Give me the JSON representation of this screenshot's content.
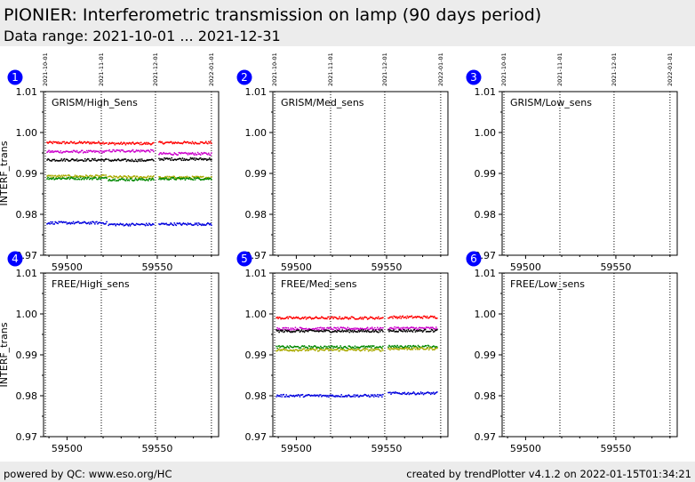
{
  "header": {
    "title": "PIONIER: Interferometric transmission on lamp (90 days period)",
    "subtitle": "Data range: 2021-10-01 ... 2021-12-31"
  },
  "footer": {
    "left": "powered by QC: www.eso.org/HC",
    "right": "created by trendPlotter v4.1.2 on 2022-01-15T01:34:21"
  },
  "colors": {
    "header_bg": "#ececec",
    "panel_badge": "#0000ff",
    "series": {
      "red": "#ff0000",
      "magenta": "#cc00cc",
      "black": "#000000",
      "green": "#008800",
      "olive": "#aaaa00",
      "blue": "#0000dd"
    }
  },
  "chart_data": [
    {
      "panel_number": "1",
      "label": "GRISM/High_Sens",
      "type": "scatter",
      "ylabel": "INTERF_trans",
      "ylim": [
        0.97,
        1.01
      ],
      "yticks": [
        "0.97",
        "0.98",
        "0.99",
        "1.00",
        "1.01"
      ],
      "xlim": [
        59487,
        59584
      ],
      "xticks": [
        "59500",
        "59550"
      ],
      "xtick_values": [
        59500,
        59550
      ],
      "top_dates": [
        "2021-10-01",
        "2021-11-01",
        "2021-12-01",
        "2022-01-01"
      ],
      "top_date_mjd": [
        59488,
        59519,
        59549,
        59580
      ],
      "series": [
        {
          "color": "red",
          "segments": [
            {
              "from": 59489,
              "to": 59522,
              "mean": 0.9975
            },
            {
              "from": 59523,
              "to": 59548,
              "mean": 0.9973
            },
            {
              "from": 59551,
              "to": 59580,
              "mean": 0.9975
            }
          ]
        },
        {
          "color": "magenta",
          "segments": [
            {
              "from": 59489,
              "to": 59522,
              "mean": 0.9953
            },
            {
              "from": 59523,
              "to": 59548,
              "mean": 0.9955
            },
            {
              "from": 59551,
              "to": 59580,
              "mean": 0.9948
            }
          ]
        },
        {
          "color": "black",
          "segments": [
            {
              "from": 59489,
              "to": 59522,
              "mean": 0.9933
            },
            {
              "from": 59523,
              "to": 59548,
              "mean": 0.9932
            },
            {
              "from": 59551,
              "to": 59580,
              "mean": 0.9935
            }
          ]
        },
        {
          "color": "olive",
          "segments": [
            {
              "from": 59489,
              "to": 59522,
              "mean": 0.9893
            },
            {
              "from": 59523,
              "to": 59548,
              "mean": 0.9891
            },
            {
              "from": 59551,
              "to": 59580,
              "mean": 0.989
            }
          ]
        },
        {
          "color": "green",
          "segments": [
            {
              "from": 59489,
              "to": 59522,
              "mean": 0.9888
            },
            {
              "from": 59523,
              "to": 59548,
              "mean": 0.9885
            },
            {
              "from": 59551,
              "to": 59580,
              "mean": 0.9887
            }
          ]
        },
        {
          "color": "blue",
          "segments": [
            {
              "from": 59489,
              "to": 59522,
              "mean": 0.9779
            },
            {
              "from": 59523,
              "to": 59548,
              "mean": 0.9775
            },
            {
              "from": 59551,
              "to": 59580,
              "mean": 0.9776
            }
          ]
        }
      ]
    },
    {
      "panel_number": "2",
      "label": "GRISM/Med_sens",
      "type": "scatter",
      "ylabel": "",
      "ylim": [
        0.97,
        1.01
      ],
      "yticks": [
        "0.97",
        "0.98",
        "0.99",
        "1.00",
        "1.01"
      ],
      "xlim": [
        59487,
        59584
      ],
      "xticks": [
        "59500",
        "59550"
      ],
      "xtick_values": [
        59500,
        59550
      ],
      "top_dates": [
        "2021-10-01",
        "2021-11-01",
        "2021-12-01",
        "2022-01-01"
      ],
      "top_date_mjd": [
        59488,
        59519,
        59549,
        59580
      ],
      "series": []
    },
    {
      "panel_number": "3",
      "label": "GRISM/Low_sens",
      "type": "scatter",
      "ylabel": "",
      "ylim": [
        0.97,
        1.01
      ],
      "yticks": [
        "0.97",
        "0.98",
        "0.99",
        "1.00",
        "1.01"
      ],
      "xlim": [
        59487,
        59584
      ],
      "xticks": [
        "59500",
        "59550"
      ],
      "xtick_values": [
        59500,
        59550
      ],
      "top_dates": [
        "2021-10-01",
        "2021-11-01",
        "2021-12-01",
        "2022-01-01"
      ],
      "top_date_mjd": [
        59488,
        59519,
        59549,
        59580
      ],
      "series": []
    },
    {
      "panel_number": "4",
      "label": "FREE/High_sens",
      "type": "scatter",
      "ylabel": "INTERF_trans",
      "ylim": [
        0.97,
        1.01
      ],
      "yticks": [
        "0.97",
        "0.98",
        "0.99",
        "1.00",
        "1.01"
      ],
      "xlim": [
        59487,
        59584
      ],
      "xticks": [
        "59500",
        "59550"
      ],
      "xtick_values": [
        59500,
        59550
      ],
      "top_dates": [],
      "top_date_mjd": [
        59488,
        59519,
        59549,
        59580
      ],
      "series": []
    },
    {
      "panel_number": "5",
      "label": "FREE/Med_sens",
      "type": "scatter",
      "ylabel": "",
      "ylim": [
        0.97,
        1.01
      ],
      "yticks": [
        "0.97",
        "0.98",
        "0.99",
        "1.00",
        "1.01"
      ],
      "xlim": [
        59487,
        59584
      ],
      "xticks": [
        "59500",
        "59550"
      ],
      "xtick_values": [
        59500,
        59550
      ],
      "top_dates": [],
      "top_date_mjd": [
        59488,
        59519,
        59549,
        59580
      ],
      "series": [
        {
          "color": "red",
          "segments": [
            {
              "from": 59489,
              "to": 59548,
              "mean": 0.999
            },
            {
              "from": 59551,
              "to": 59578,
              "mean": 0.9992
            }
          ]
        },
        {
          "color": "magenta",
          "segments": [
            {
              "from": 59489,
              "to": 59548,
              "mean": 0.9964
            },
            {
              "from": 59551,
              "to": 59578,
              "mean": 0.9965
            }
          ]
        },
        {
          "color": "black",
          "segments": [
            {
              "from": 59489,
              "to": 59548,
              "mean": 0.9958
            },
            {
              "from": 59551,
              "to": 59578,
              "mean": 0.9959
            }
          ]
        },
        {
          "color": "green",
          "segments": [
            {
              "from": 59489,
              "to": 59548,
              "mean": 0.9919
            },
            {
              "from": 59551,
              "to": 59578,
              "mean": 0.992
            }
          ]
        },
        {
          "color": "olive",
          "segments": [
            {
              "from": 59489,
              "to": 59548,
              "mean": 0.9912
            },
            {
              "from": 59551,
              "to": 59578,
              "mean": 0.9915
            }
          ]
        },
        {
          "color": "blue",
          "segments": [
            {
              "from": 59489,
              "to": 59548,
              "mean": 0.98
            },
            {
              "from": 59551,
              "to": 59578,
              "mean": 0.9806
            }
          ]
        }
      ]
    },
    {
      "panel_number": "6",
      "label": "FREE/Low_sens",
      "type": "scatter",
      "ylabel": "",
      "ylim": [
        0.97,
        1.01
      ],
      "yticks": [
        "0.97",
        "0.98",
        "0.99",
        "1.00",
        "1.01"
      ],
      "xlim": [
        59487,
        59584
      ],
      "xticks": [
        "59500",
        "59550"
      ],
      "xtick_values": [
        59500,
        59550
      ],
      "top_dates": [],
      "top_date_mjd": [
        59488,
        59519,
        59549,
        59580
      ],
      "series": []
    }
  ]
}
